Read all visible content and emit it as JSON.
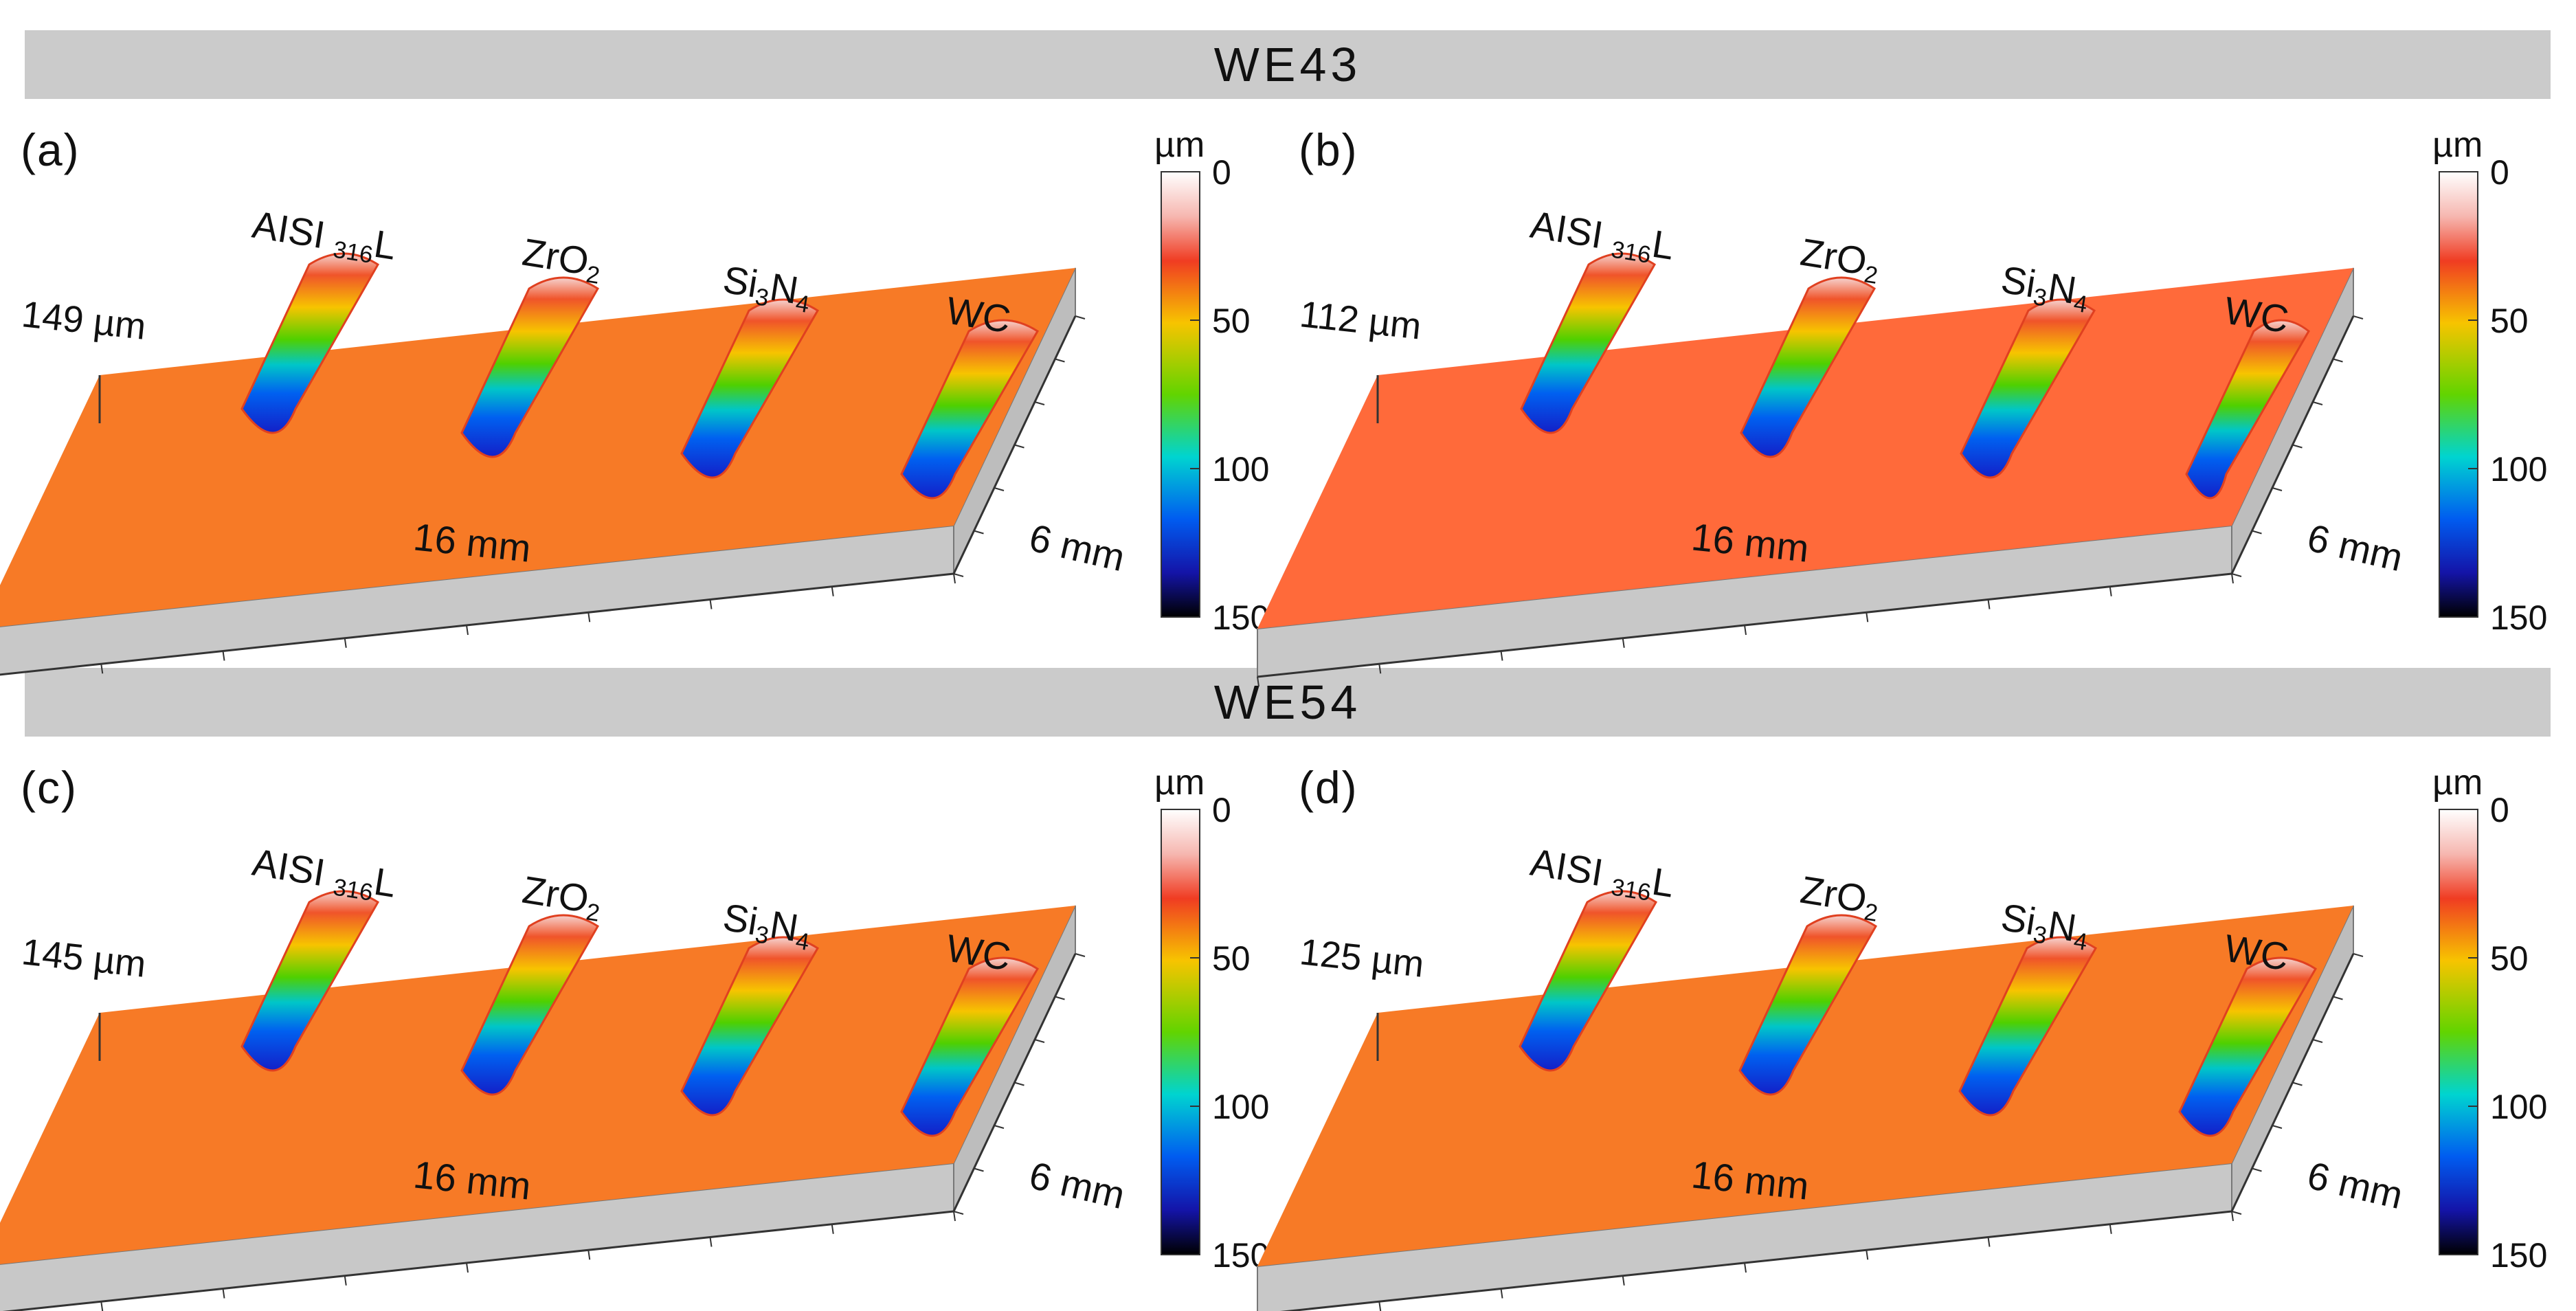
{
  "sections": [
    {
      "title": "WE43",
      "panels": [
        {
          "label": "(a)",
          "depth_label": "149 µm"
        },
        {
          "label": "(b)",
          "depth_label": "112 µm"
        }
      ]
    },
    {
      "title": "WE54",
      "panels": [
        {
          "label": "(c)",
          "depth_label": "145 µm"
        },
        {
          "label": "(d)",
          "depth_label": "125 µm"
        }
      ]
    }
  ],
  "counterbodies": [
    "AISI 316L",
    "ZrO2",
    "Si3N4",
    "WC"
  ],
  "dimensions": {
    "length": "16 mm",
    "width": "6 mm"
  },
  "colorbar": {
    "unit": "µm",
    "ticks": [
      "0",
      "50",
      "100",
      "150"
    ]
  },
  "colors": {
    "surface": "#f77a26",
    "surface_b": "#ff6a3a",
    "block_side": "#c6c6c6",
    "banner": "#cbcbcb"
  }
}
